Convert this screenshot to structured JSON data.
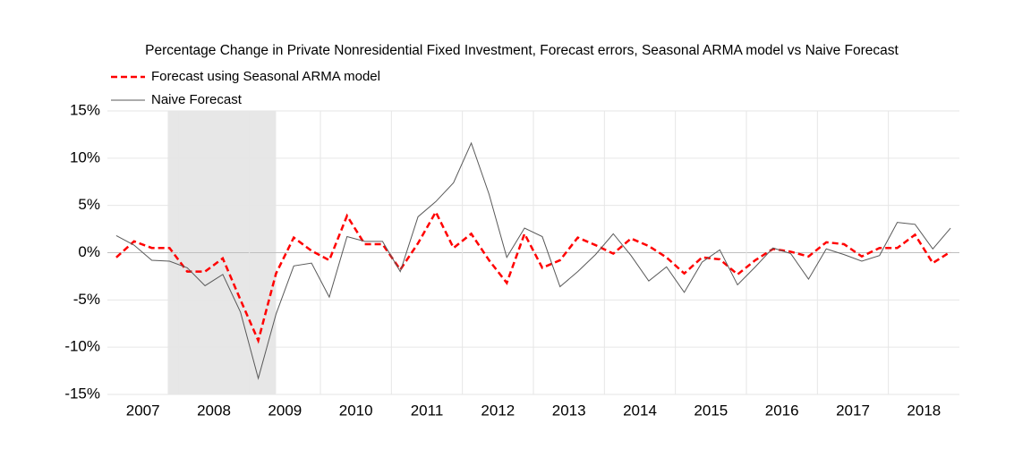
{
  "chart_data": {
    "type": "line",
    "title": "Percentage Change in Private Nonresidential Fixed Investment, Forecast errors, Seasonal ARMA model vs Naive Forecast",
    "years": [
      "2007",
      "2008",
      "2009",
      "2010",
      "2011",
      "2012",
      "2013",
      "2014",
      "2015",
      "2016",
      "2017",
      "2018"
    ],
    "periods_per_year": 4,
    "shade": {
      "start": 3.4,
      "end": 9.5,
      "color": "#e7e7e7"
    },
    "series": [
      {
        "name": "Forecast using Seasonal ARMA model",
        "color": "#ff0000",
        "dash": true,
        "values": [
          -0.5,
          1.2,
          0.5,
          0.5,
          -2.0,
          -2.0,
          -0.6,
          -5.0,
          -9.3,
          -2.2,
          1.6,
          0.2,
          -0.8,
          3.9,
          0.9,
          0.9,
          -1.8,
          1.0,
          4.3,
          0.5,
          2.0,
          -0.8,
          -3.2,
          2.0,
          -1.6,
          -0.8,
          1.6,
          0.8,
          -0.1,
          1.5,
          0.7,
          -0.5,
          -2.2,
          -0.5,
          -0.7,
          -2.3,
          -0.8,
          0.4,
          0.1,
          -0.4,
          1.1,
          0.9,
          -0.4,
          0.5,
          0.5,
          1.9,
          -1.1,
          0.1
        ]
      },
      {
        "name": "Naive Forecast",
        "color": "#595959",
        "dash": false,
        "values": [
          1.8,
          0.8,
          -0.8,
          -0.9,
          -1.6,
          -3.5,
          -2.3,
          -6.3,
          -13.3,
          -6.5,
          -1.4,
          -1.1,
          -4.7,
          1.7,
          1.2,
          1.2,
          -2.0,
          3.8,
          5.4,
          7.4,
          11.6,
          6.2,
          -0.5,
          2.6,
          1.7,
          -3.6,
          -2.0,
          -0.2,
          2.0,
          -0.3,
          -3.0,
          -1.5,
          -4.2,
          -1.0,
          0.3,
          -3.4,
          -1.5,
          0.5,
          -0.1,
          -2.8,
          0.4,
          -0.2,
          -0.9,
          -0.3,
          3.2,
          3.0,
          0.4,
          2.6
        ]
      }
    ],
    "ylim": [
      -15,
      15
    ],
    "yticks": [
      {
        "value": -15,
        "label": "-15%"
      },
      {
        "value": -10,
        "label": "-10%"
      },
      {
        "value": -5,
        "label": "-5%"
      },
      {
        "value": 0,
        "label": "0%"
      },
      {
        "value": 5,
        "label": "5%"
      },
      {
        "value": 10,
        "label": "10%"
      },
      {
        "value": 15,
        "label": "15%"
      }
    ],
    "grid": true
  }
}
